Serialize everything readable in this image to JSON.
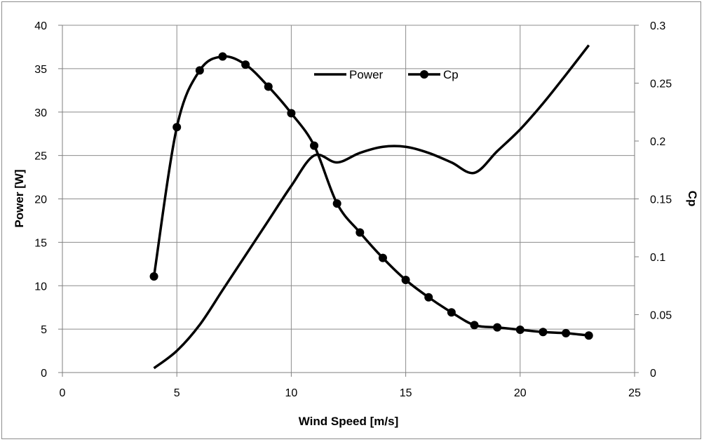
{
  "chart_data": {
    "type": "line",
    "xlabel": "Wind Speed [m/s]",
    "ylabel": "Power [W]",
    "y2label": "Cp",
    "xlim": [
      0,
      25
    ],
    "ylim": [
      0,
      40
    ],
    "y2lim": [
      0,
      0.3
    ],
    "x_ticks": [
      "0",
      "5",
      "10",
      "15",
      "20",
      "25"
    ],
    "y_ticks": [
      "0",
      "5",
      "10",
      "15",
      "20",
      "25",
      "30",
      "35",
      "40"
    ],
    "y2_ticks": [
      "0",
      "0.05",
      "0.1",
      "0.15",
      "0.2",
      "0.25",
      "0.3"
    ],
    "grid": true,
    "legend_position": "top-center",
    "series": [
      {
        "name": "Power",
        "axis": "left",
        "marker": "none",
        "color": "#000000",
        "x": [
          4,
          5,
          6,
          7,
          8,
          9,
          10,
          11,
          12,
          13,
          14,
          15,
          16,
          17,
          18,
          19,
          20,
          21,
          22,
          23
        ],
        "y": [
          0.5,
          2.5,
          5.5,
          9.5,
          13.5,
          17.5,
          21.5,
          25.0,
          24.2,
          25.3,
          26.0,
          26.0,
          25.3,
          24.2,
          23.0,
          25.5,
          28.0,
          31.0,
          34.3,
          37.7
        ]
      },
      {
        "name": "Cp",
        "axis": "right",
        "marker": "circle",
        "color": "#000000",
        "x": [
          4,
          5,
          6,
          7,
          8,
          9,
          10,
          11,
          12,
          13,
          14,
          15,
          16,
          17,
          18,
          19,
          20,
          21,
          22,
          23
        ],
        "y": [
          0.083,
          0.212,
          0.261,
          0.273,
          0.266,
          0.247,
          0.224,
          0.196,
          0.146,
          0.121,
          0.099,
          0.08,
          0.065,
          0.052,
          0.041,
          0.039,
          0.037,
          0.035,
          0.034,
          0.032
        ]
      }
    ]
  }
}
